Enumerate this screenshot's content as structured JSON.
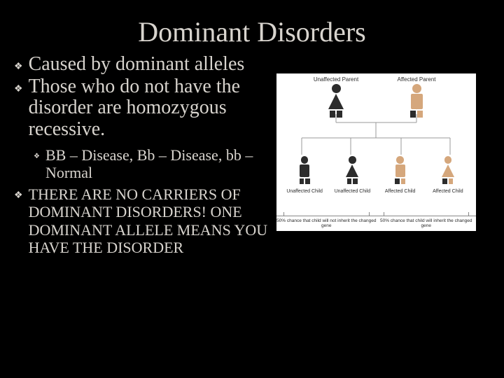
{
  "title": "Dominant Disorders",
  "bullets": {
    "b1": "Caused by dominant alleles",
    "b2": "Those who do not have the disorder are homozygous recessive.",
    "sub1": "BB – Disease, Bb – Disease, bb – Normal",
    "b3": "THERE ARE NO CARRIERS OF DOMINANT DISORDERS! ONE DOMINANT ALLELE MEANS YOU HAVE THE DISORDER"
  },
  "bullet_glyph": "❖",
  "diagram": {
    "background_color": "#ffffff",
    "text_color": "#2b2b2b",
    "colors": {
      "unaffected": "#2c2c2c",
      "affected": "#d5a77c",
      "allele_normal": "#2c2c2c",
      "allele_mutant": "#d5a77c",
      "line": "#9a9a9a"
    },
    "parents": {
      "left": {
        "label": "Unaffected Parent",
        "sex": "female",
        "affected": false,
        "alleles": [
          "n",
          "n"
        ]
      },
      "right": {
        "label": "Affected Parent",
        "sex": "male",
        "affected": true,
        "alleles": [
          "n",
          "m"
        ]
      }
    },
    "children": [
      {
        "label": "Unaffected Child",
        "sex": "male",
        "affected": false,
        "alleles": [
          "n",
          "n"
        ]
      },
      {
        "label": "Unaffected Child",
        "sex": "female",
        "affected": false,
        "alleles": [
          "n",
          "n"
        ]
      },
      {
        "label": "Affected Child",
        "sex": "male",
        "affected": true,
        "alleles": [
          "n",
          "m"
        ]
      },
      {
        "label": "Affected Child",
        "sex": "female",
        "affected": true,
        "alleles": [
          "n",
          "m"
        ]
      }
    ],
    "captions": {
      "left": "50% chance that child will not inherit the changed gene",
      "right": "50% chance that child will inherit the changed gene"
    }
  }
}
